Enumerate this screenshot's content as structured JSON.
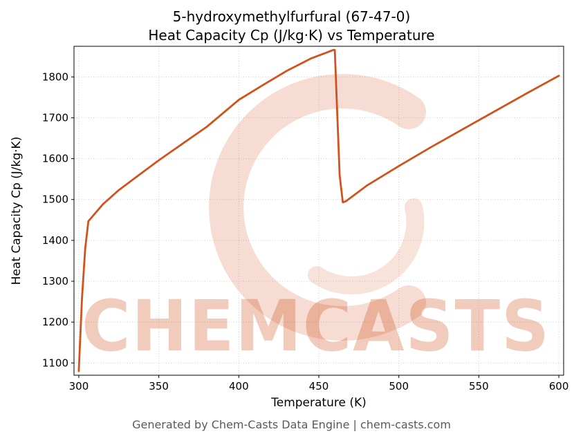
{
  "header": {
    "title_line1": "5-hydroxymethylfurfural (67-47-0)",
    "title_line2": "Heat Capacity Cp (J/kg·K) vs Temperature"
  },
  "watermark": {
    "text": "CHEMCASTS",
    "color": "#d2521d"
  },
  "footer": {
    "text": "Generated by Chem-Casts Data Engine | chem-casts.com"
  },
  "chart_data": {
    "type": "line",
    "title": "5-hydroxymethylfurfural (67-47-0)",
    "subtitle": "Heat Capacity Cp (J/kg·K) vs Temperature",
    "xlabel": "Temperature (K)",
    "ylabel": "Heat Capacity Cp (J/kg·K)",
    "xlim": [
      297,
      603
    ],
    "ylim": [
      1070,
      1875
    ],
    "xticks": [
      300,
      350,
      400,
      450,
      500,
      550,
      600
    ],
    "yticks": [
      1100,
      1200,
      1300,
      1400,
      1500,
      1600,
      1700,
      1800
    ],
    "grid": true,
    "grid_style": "dotted",
    "grid_color": "#cccccc",
    "line_color": "#d2521d",
    "legend": "none",
    "series": [
      {
        "name": "Heat Capacity Cp (J/kg·K)",
        "points": [
          [
            300,
            1080
          ],
          [
            302,
            1260
          ],
          [
            304,
            1380
          ],
          [
            306,
            1447
          ],
          [
            315,
            1488
          ],
          [
            325,
            1523
          ],
          [
            340,
            1567
          ],
          [
            350,
            1596
          ],
          [
            365,
            1637
          ],
          [
            380,
            1678
          ],
          [
            400,
            1744
          ],
          [
            415,
            1780
          ],
          [
            430,
            1815
          ],
          [
            445,
            1845
          ],
          [
            455,
            1860
          ],
          [
            459,
            1866
          ],
          [
            460,
            1866
          ],
          [
            463,
            1560
          ],
          [
            465,
            1493
          ],
          [
            467,
            1496
          ],
          [
            480,
            1534
          ],
          [
            500,
            1582
          ],
          [
            520,
            1628
          ],
          [
            540,
            1672
          ],
          [
            560,
            1716
          ],
          [
            580,
            1760
          ],
          [
            600,
            1803
          ]
        ]
      }
    ]
  }
}
